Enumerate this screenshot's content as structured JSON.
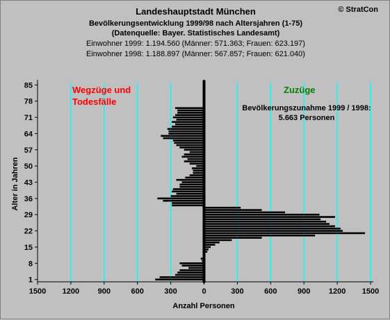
{
  "header": {
    "title": "Landeshauptstadt München",
    "subtitle": "Bevölkerungsentwicklung 1999/98 nach Altersjahren (1-75)",
    "source": "(Datenquelle: Bayer. Statistisches Landesamt)",
    "line1999": "Einwohner 1999: 1.194.560  (Männer: 571.363; Frauen: 623.197)",
    "line1998": "Einwohner 1998: 1.188.897  (Männer: 567.857; Frauen: 621.040)",
    "copyright": "© StratCon"
  },
  "colors": {
    "background": "#c0c0c0",
    "bars": "#000000",
    "gridlines": "#00ffff",
    "left_label": "#ff0000",
    "right_label": "#008000",
    "zero_axis": "#000000"
  },
  "chart_data": {
    "type": "bar",
    "orientation": "horizontal",
    "xlabel": "Anzahl Personen",
    "ylabel": "Alter in Jahren",
    "xlim": [
      -1500,
      1500
    ],
    "ylim": [
      0,
      86
    ],
    "x_ticks": [
      -1500,
      -1200,
      -900,
      -600,
      -300,
      0,
      300,
      600,
      900,
      1200,
      1500
    ],
    "x_tick_labels": [
      "1500",
      "1200",
      "900",
      "600",
      "300",
      "0",
      "300",
      "600",
      "900",
      "1200",
      "1500"
    ],
    "y_ticks": [
      1,
      8,
      15,
      22,
      29,
      36,
      43,
      50,
      57,
      64,
      71,
      78,
      85
    ],
    "grid": "vertical",
    "left_label": "Wegzüge und Todesfälle",
    "right_label": "Zuzüge",
    "annotation_line1": "Bevölkerungszunahme 1999 / 1998:",
    "annotation_line2": "5.663 Personen",
    "ages": [
      1,
      2,
      3,
      4,
      5,
      6,
      7,
      8,
      9,
      10,
      11,
      12,
      13,
      14,
      15,
      16,
      17,
      18,
      19,
      20,
      21,
      22,
      23,
      24,
      25,
      26,
      27,
      28,
      29,
      30,
      31,
      32,
      33,
      34,
      35,
      36,
      37,
      38,
      39,
      40,
      41,
      42,
      43,
      44,
      45,
      46,
      47,
      48,
      49,
      50,
      51,
      52,
      53,
      54,
      55,
      56,
      57,
      58,
      59,
      60,
      61,
      62,
      63,
      64,
      65,
      66,
      67,
      68,
      69,
      70,
      71,
      72,
      73,
      74,
      75
    ],
    "values": [
      -440,
      -400,
      -260,
      -240,
      -220,
      -140,
      -200,
      -220,
      -20,
      -30,
      -10,
      -10,
      30,
      40,
      60,
      100,
      140,
      250,
      520,
      1000,
      1450,
      1250,
      1230,
      1180,
      1130,
      1100,
      1050,
      1180,
      1040,
      730,
      520,
      330,
      -290,
      -290,
      -370,
      -420,
      -300,
      -250,
      -290,
      -280,
      -220,
      -220,
      -200,
      -250,
      -170,
      -130,
      -100,
      -100,
      -110,
      -70,
      -130,
      -180,
      -150,
      -200,
      -180,
      -130,
      -180,
      -220,
      -250,
      -270,
      -280,
      -370,
      -390,
      -320,
      -320,
      -330,
      -290,
      -260,
      -290,
      -250,
      -280,
      -260,
      -240,
      -240,
      -260
    ]
  }
}
